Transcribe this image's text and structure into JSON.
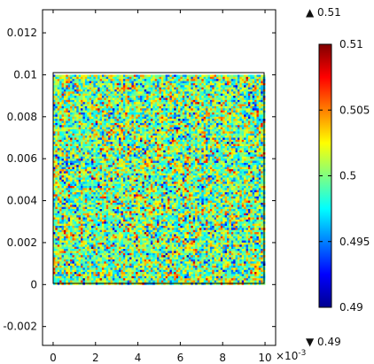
{
  "chart_data": {
    "type": "heatmap",
    "title": "",
    "xlabel": "",
    "ylabel": "",
    "x_axis": {
      "range": [
        -0.0005,
        0.0105
      ],
      "ticks": [
        0,
        0.002,
        0.004,
        0.006,
        0.008,
        0.01
      ],
      "tick_labels": [
        "0",
        "2",
        "4",
        "6",
        "8",
        "10"
      ],
      "multiplier_label": "×10",
      "multiplier_exponent": "-3"
    },
    "y_axis": {
      "range": [
        -0.0029,
        0.0131
      ],
      "ticks": [
        -0.002,
        0,
        0.002,
        0.004,
        0.006,
        0.008,
        0.01,
        0.012
      ],
      "tick_labels": [
        "-0.002",
        "0",
        "0.002",
        "0.004",
        "0.006",
        "0.008",
        "0.01",
        "0.012"
      ]
    },
    "domain": {
      "x": [
        0,
        0.01
      ],
      "y": [
        0,
        0.01
      ]
    },
    "field": {
      "description": "random noise field",
      "min": 0.49,
      "max": 0.51,
      "mean": 0.5,
      "grid_cells": [
        100,
        100
      ],
      "seed": 12345
    },
    "colorbar": {
      "colormap": "jet",
      "range": [
        0.49,
        0.51
      ],
      "ticks": [
        0.49,
        0.495,
        0.5,
        0.505,
        0.51
      ],
      "tick_labels": [
        "0.49",
        "0.495",
        "0.5",
        "0.505",
        "0.51"
      ],
      "max_indicator": "▲ 0.51",
      "min_indicator": "▼ 0.49"
    },
    "grid": false
  }
}
